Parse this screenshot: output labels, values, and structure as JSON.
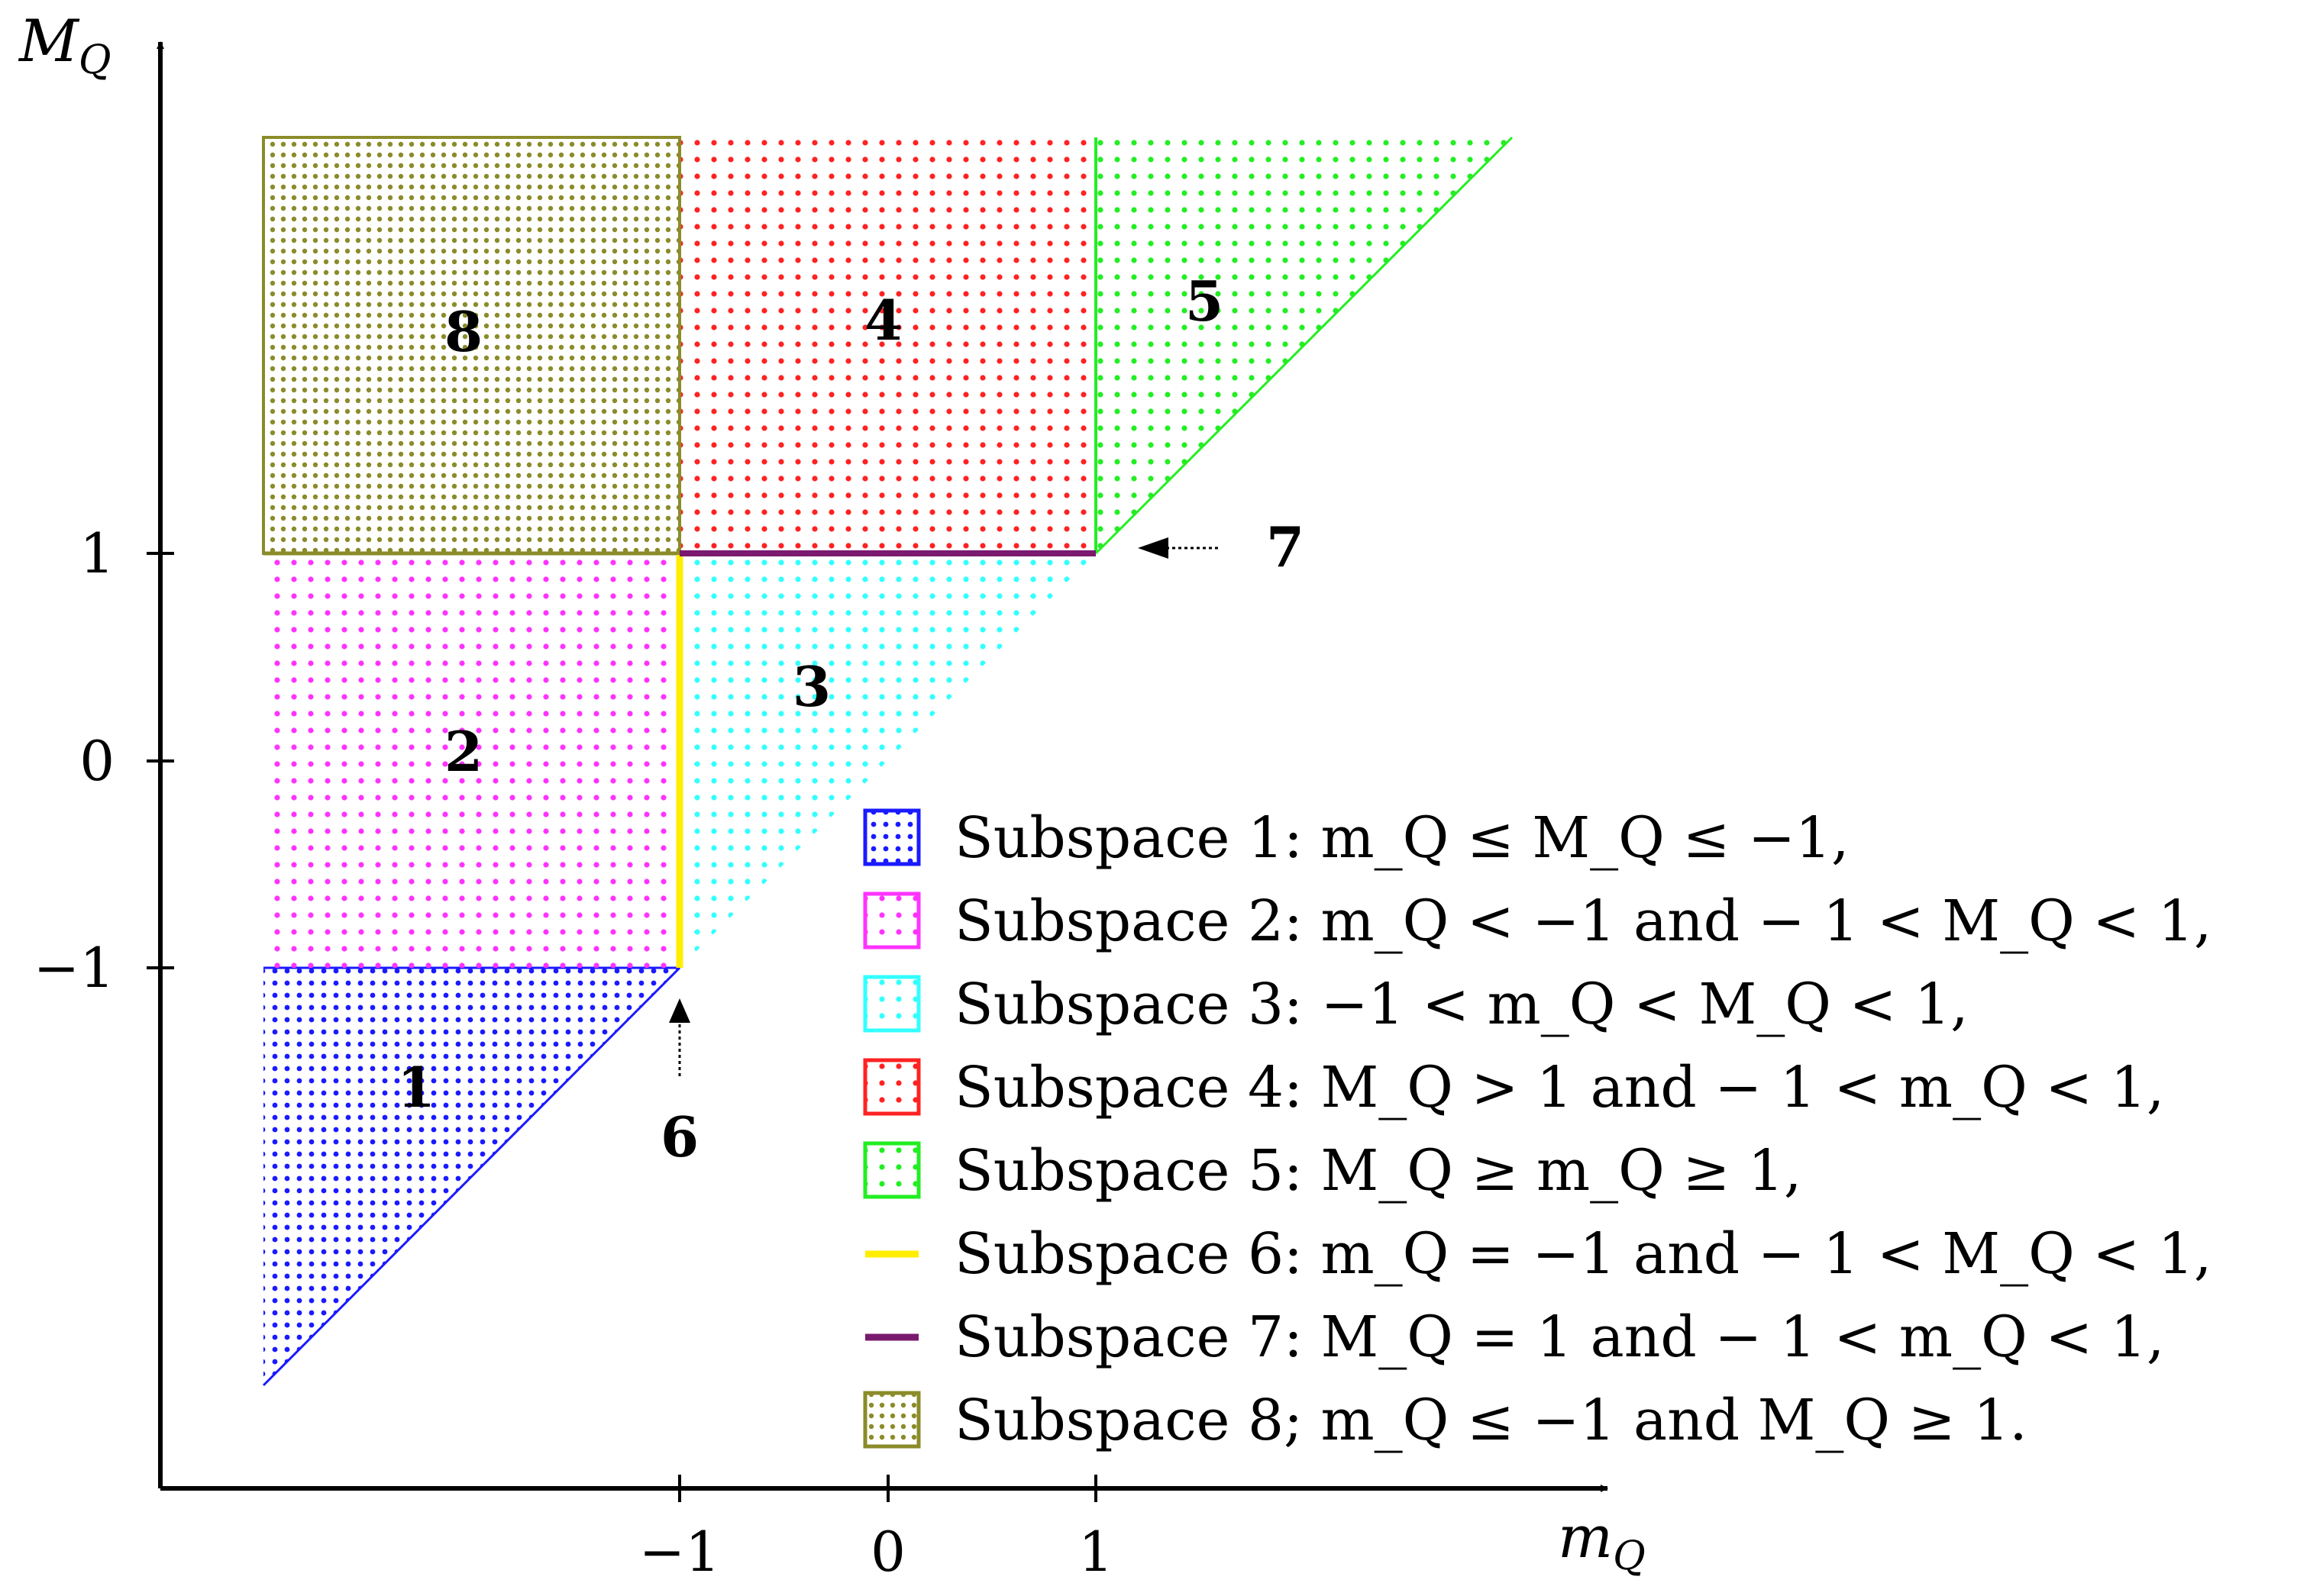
{
  "axes": {
    "y_label_main": "M",
    "y_label_sub": "Q",
    "x_label_main": "m",
    "x_label_sub": "Q",
    "x_ticks": [
      "−1",
      "0",
      "1"
    ],
    "y_ticks": [
      "1",
      "0",
      "−1"
    ]
  },
  "regions": [
    {
      "label": "1",
      "color": "#1a1aff"
    },
    {
      "label": "2",
      "color": "#ff33ff"
    },
    {
      "label": "3",
      "color": "#33ffff"
    },
    {
      "label": "4",
      "color": "#ff2222"
    },
    {
      "label": "5",
      "color": "#22ee22"
    },
    {
      "label": "8",
      "color": "#8b8b2a"
    }
  ],
  "boundaries": [
    {
      "label": "6",
      "color": "#ffee00"
    },
    {
      "label": "7",
      "color": "#7a1a6e"
    }
  ],
  "legend": [
    {
      "text": "Subspace 1: m_Q ≤ M_Q ≤ −1,",
      "kind": "pattern",
      "color": "#1a1aff"
    },
    {
      "text": "Subspace 2: m_Q < −1 and − 1 < M_Q < 1,",
      "kind": "pattern",
      "color": "#ff33ff"
    },
    {
      "text": "Subspace 3: −1 < m_Q < M_Q < 1,",
      "kind": "pattern",
      "color": "#33ffff"
    },
    {
      "text": "Subspace 4: M_Q > 1 and − 1 < m_Q < 1,",
      "kind": "pattern",
      "color": "#ff2222"
    },
    {
      "text": "Subspace 5: M_Q ≥ m_Q ≥ 1,",
      "kind": "pattern",
      "color": "#22ee22"
    },
    {
      "text": "Subspace 6: m_Q = −1 and − 1 < M_Q < 1,",
      "kind": "line",
      "color": "#ffee00"
    },
    {
      "text": "Subspace 7: M_Q = 1 and − 1 < m_Q < 1,",
      "kind": "line",
      "color": "#7a1a6e"
    },
    {
      "text": "Subspace 8; m_Q ≤ −1 and M_Q ≥ 1.",
      "kind": "pattern",
      "color": "#8b8b2a"
    }
  ]
}
